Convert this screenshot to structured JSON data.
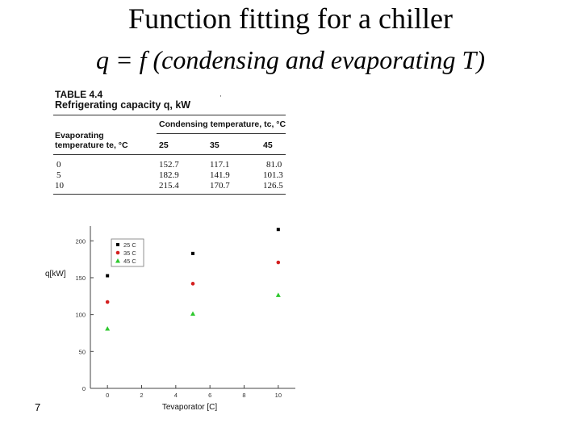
{
  "slide": {
    "title": "Function fitting for a chiller",
    "subtitle": "q = f (condensing and evaporating T)",
    "page_number": "7"
  },
  "table": {
    "number": "TABLE 4.4",
    "title": "Refrigerating capacity q, kW",
    "stray_mark": "·",
    "cond_header": "Condensing temperature, tc, °C",
    "evap_header_line1": "Evaporating",
    "evap_header_line2": "temperature te, °C",
    "cond_cols": [
      "25",
      "35",
      "45"
    ],
    "rows": [
      {
        "evap": "0",
        "values": [
          "152.7",
          "117.1",
          "81.0"
        ]
      },
      {
        "evap": "5",
        "values": [
          "182.9",
          "141.9",
          "101.3"
        ]
      },
      {
        "evap": "10",
        "values": [
          "215.4",
          "170.7",
          "126.5"
        ]
      }
    ]
  },
  "chart_data": {
    "type": "scatter",
    "title": "",
    "xlabel": "Tevaporator [C]",
    "ylabel": "q[kW]",
    "xlim": [
      -1,
      11
    ],
    "ylim": [
      0,
      220
    ],
    "xticks": [
      "0",
      "2",
      "4",
      "6",
      "8",
      "10"
    ],
    "yticks": [
      "0",
      "50",
      "100",
      "150",
      "200"
    ],
    "grid": false,
    "legend_position": "top-left",
    "series": [
      {
        "name": "25 C",
        "color": "#000000",
        "marker": "square",
        "x": [
          0,
          5,
          10
        ],
        "y": [
          152.7,
          182.9,
          215.4
        ]
      },
      {
        "name": "35 C",
        "color": "#d42020",
        "marker": "circle",
        "x": [
          0,
          5,
          10
        ],
        "y": [
          117.1,
          141.9,
          170.7
        ]
      },
      {
        "name": "45 C",
        "color": "#2ec82e",
        "marker": "triangle",
        "x": [
          0,
          5,
          10
        ],
        "y": [
          81.0,
          101.3,
          126.5
        ]
      }
    ]
  }
}
